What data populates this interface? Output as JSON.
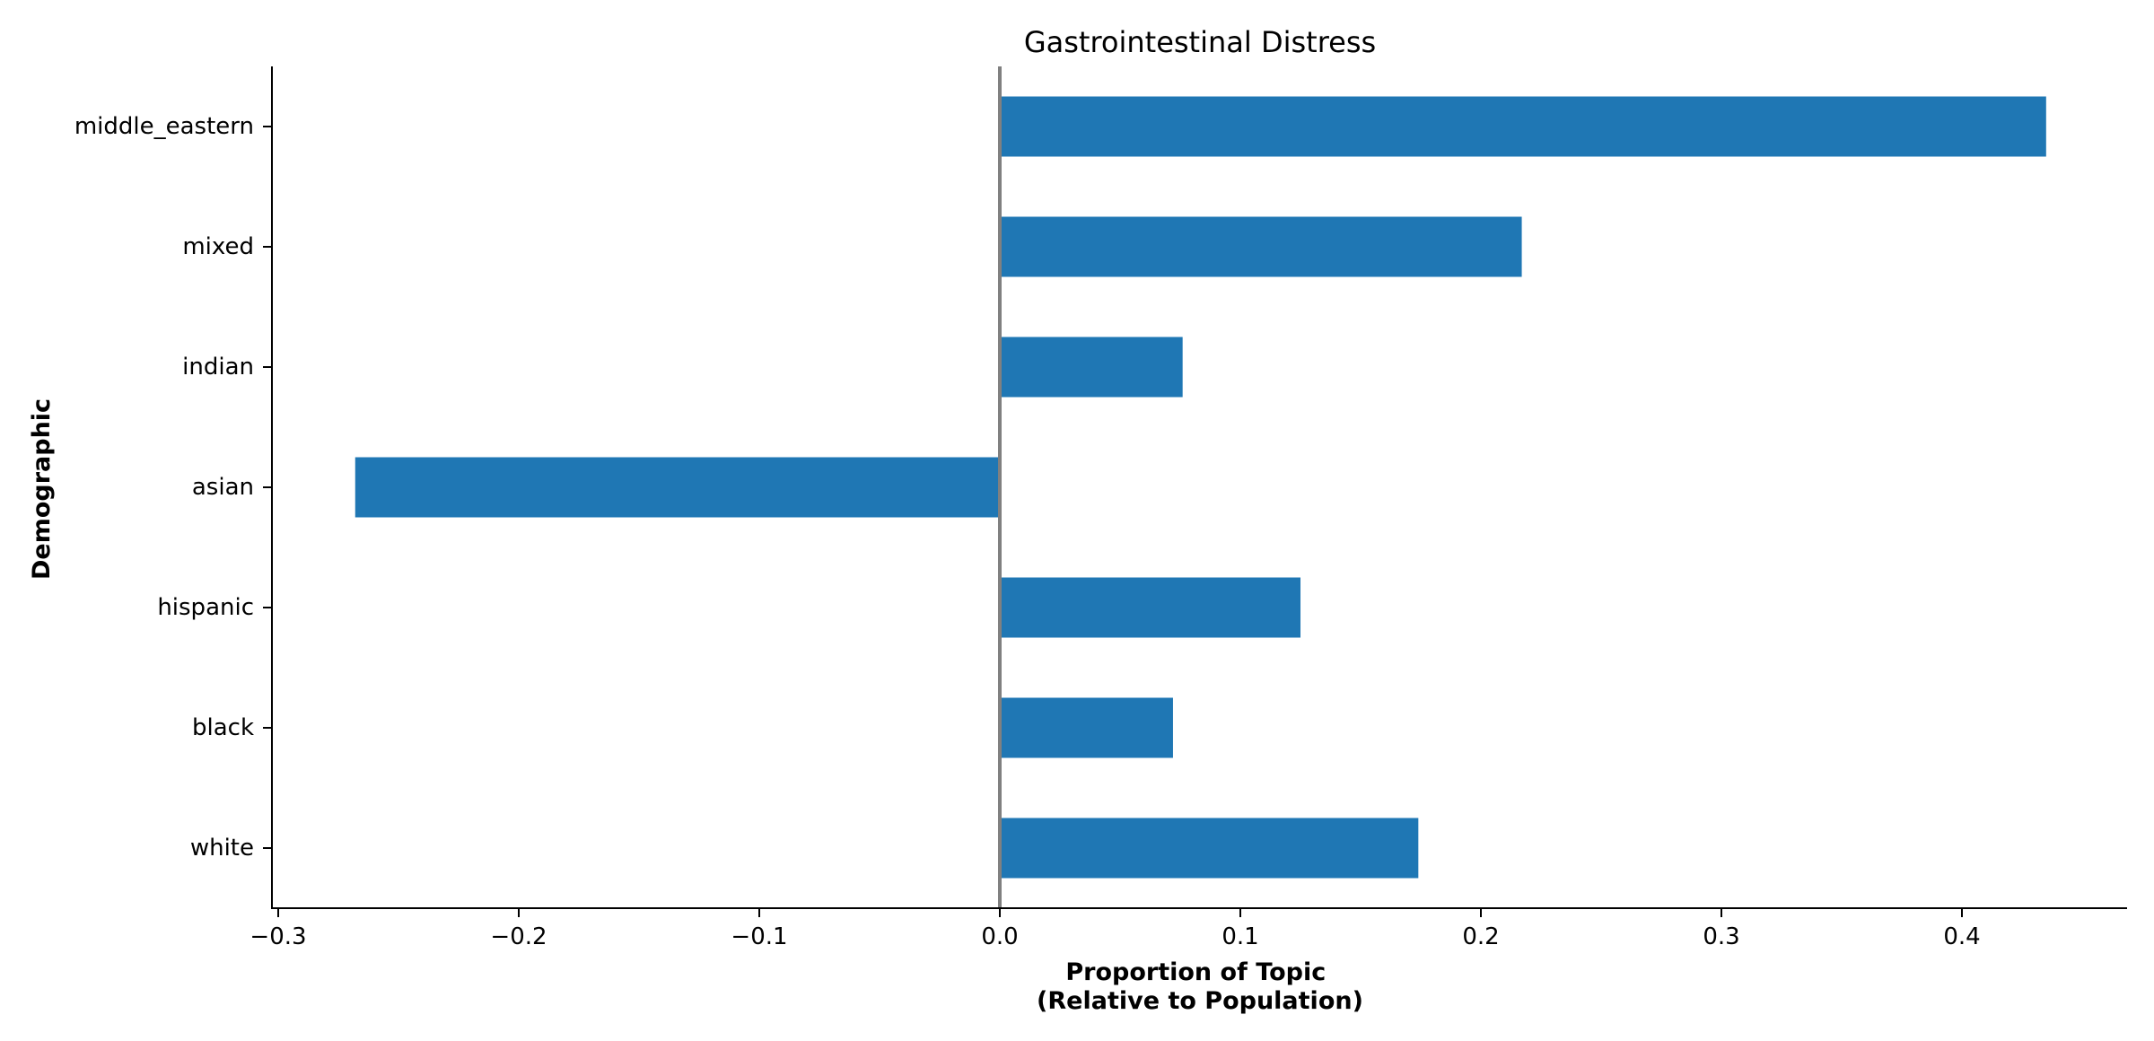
{
  "chart_data": {
    "type": "bar",
    "orientation": "horizontal",
    "title": "Gastrointestinal Distress",
    "xlabel_lines": [
      "Proportion of Topic",
      "(Relative to Population)"
    ],
    "ylabel": "Demographic",
    "categories": [
      "white",
      "black",
      "hispanic",
      "asian",
      "indian",
      "mixed",
      "middle_eastern"
    ],
    "values": [
      0.174,
      0.072,
      0.125,
      -0.268,
      0.076,
      0.217,
      0.435
    ],
    "xlim": [
      -0.303,
      0.469
    ],
    "xticks": [
      -0.3,
      -0.2,
      -0.1,
      0.0,
      0.1,
      0.2,
      0.3,
      0.4
    ],
    "xtick_labels": [
      "−0.3",
      "−0.2",
      "−0.1",
      "0.0",
      "0.1",
      "0.2",
      "0.3",
      "0.4"
    ],
    "reference_line_x": 0,
    "grid": false,
    "legend": false,
    "colors": {
      "bar": "#1f77b4",
      "reference_line": "#808080",
      "axis": "#000000"
    }
  }
}
